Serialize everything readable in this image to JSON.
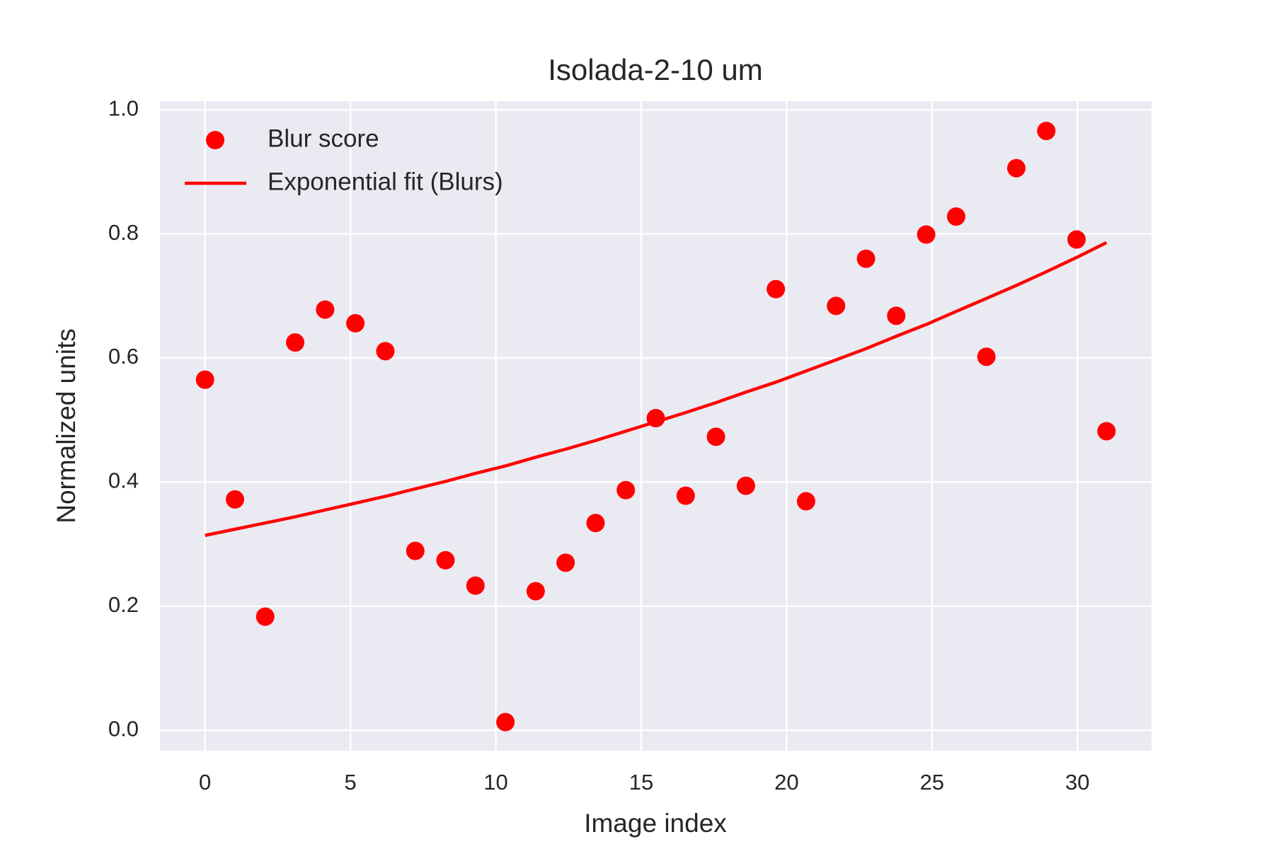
{
  "chart_data": {
    "type": "scatter",
    "title": "Isolada-2-10 um",
    "x_label": "Image index",
    "y_label": "Normalized units",
    "x": [
      0,
      1.03,
      2.07,
      3.1,
      4.13,
      5.17,
      6.2,
      7.23,
      8.27,
      9.3,
      10.33,
      11.37,
      12.4,
      13.43,
      14.47,
      15.5,
      16.53,
      17.57,
      18.6,
      19.63,
      20.67,
      21.7,
      22.73,
      23.77,
      24.8,
      25.83,
      26.87,
      27.9,
      28.93,
      29.97,
      31
    ],
    "series": [
      {
        "name": "Blur score",
        "color": "#ff0000",
        "mark": "marker",
        "values": [
          0.565,
          0.372,
          0.183,
          0.625,
          0.678,
          0.656,
          0.611,
          0.289,
          0.274,
          0.233,
          0.013,
          0.224,
          0.27,
          0.334,
          0.387,
          0.503,
          0.378,
          0.473,
          0.394,
          0.711,
          0.369,
          0.684,
          0.76,
          0.668,
          0.799,
          0.828,
          0.602,
          0.906,
          0.966,
          0.791,
          0.482
        ]
      },
      {
        "name": "Exponential fit (Blurs)",
        "color": "#ff0000",
        "mark": "line",
        "values": [
          0.314,
          0.324,
          0.334,
          0.344,
          0.355,
          0.366,
          0.377,
          0.389,
          0.401,
          0.414,
          0.426,
          0.44,
          0.453,
          0.467,
          0.482,
          0.497,
          0.512,
          0.528,
          0.545,
          0.561,
          0.579,
          0.597,
          0.615,
          0.635,
          0.654,
          0.675,
          0.696,
          0.717,
          0.739,
          0.762,
          0.786
        ]
      }
    ],
    "xlim": [
      -1.55,
      32.55
    ],
    "ylim": [
      -0.033,
      1.014
    ],
    "xticks": [
      0,
      5,
      10,
      15,
      20,
      25,
      30
    ],
    "yticks": [
      {
        "value": 0,
        "label": "0.0"
      },
      0.2,
      0.4,
      0.6,
      0.8,
      {
        "value": 1,
        "label": "1.0"
      }
    ],
    "grid": true,
    "legend": "upper left"
  }
}
